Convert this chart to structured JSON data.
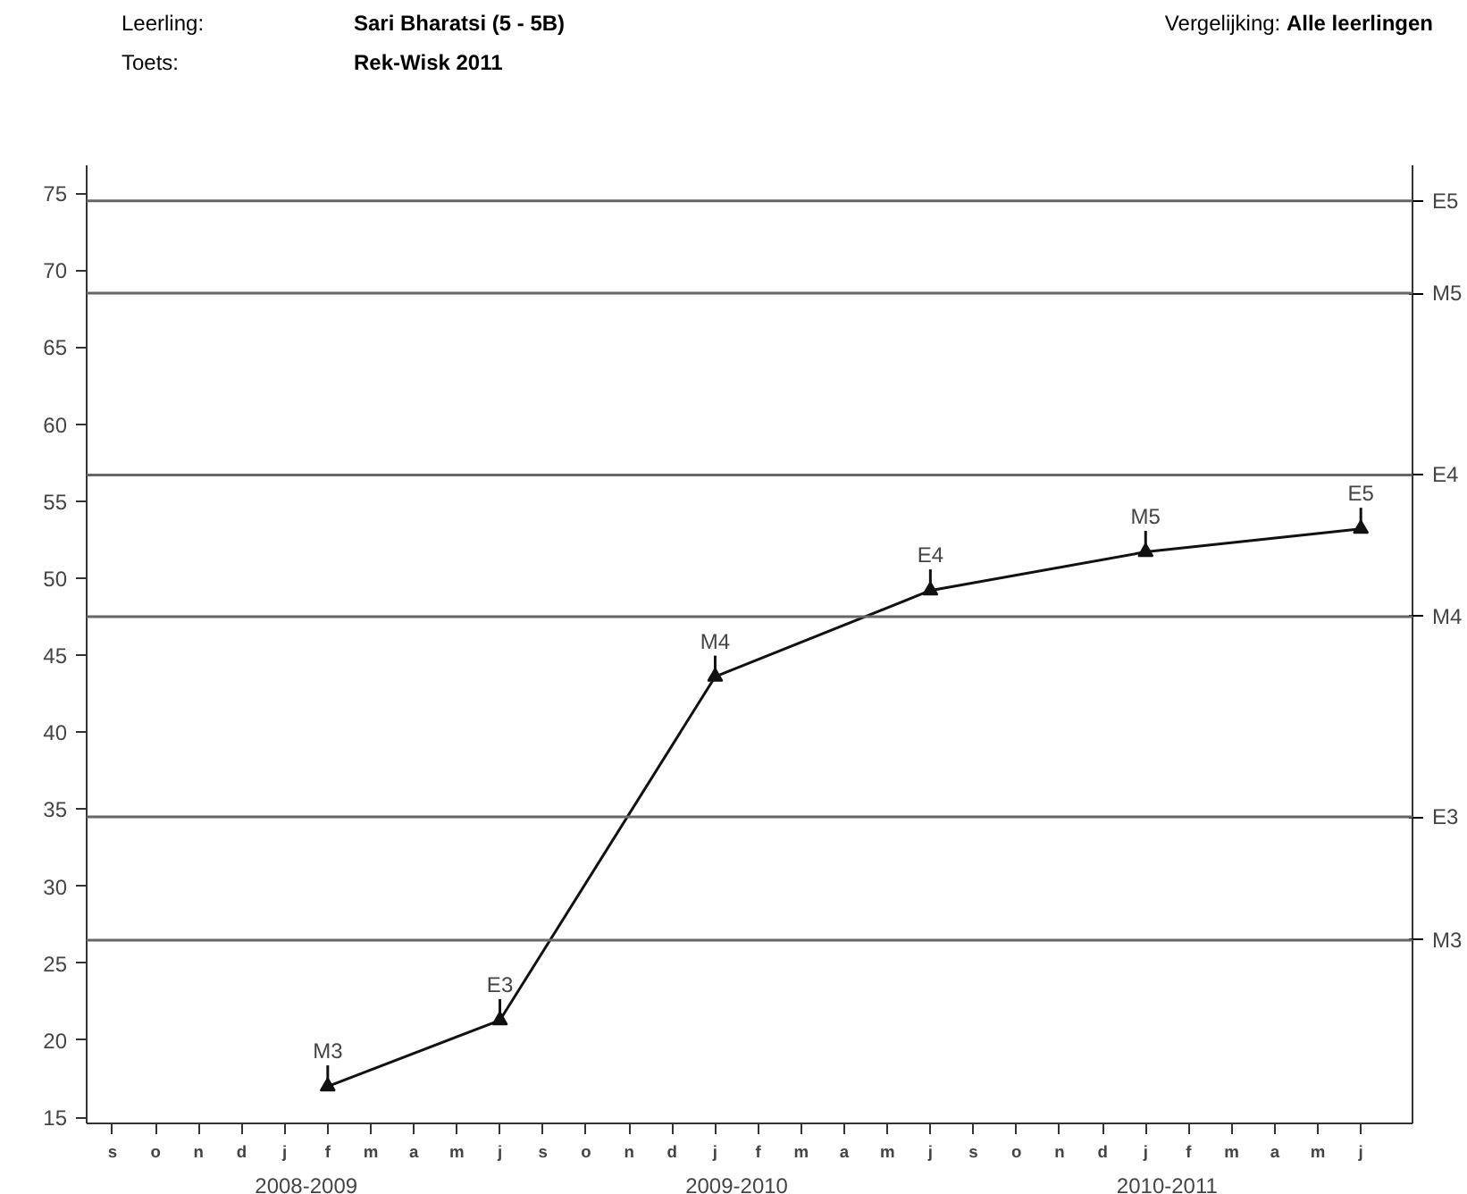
{
  "chart_data": {
    "type": "line",
    "annotations": [
      "Leerling:",
      "Sari Bharatsi  (5 - 5B)",
      "Toets:",
      "Rek-Wisk 2011",
      "Vergelijking: Alle leerlingen",
      "2008-2009",
      "2009-2010",
      "2010-2011"
    ],
    "categories": [
      "s",
      "o",
      "n",
      "d",
      "j",
      "f",
      "m",
      "a",
      "m",
      "j",
      "s",
      "o",
      "n",
      "d",
      "j",
      "f",
      "m",
      "a",
      "m",
      "j",
      "s",
      "o",
      "n",
      "d",
      "j",
      "f",
      "m",
      "a",
      "m",
      "j"
    ],
    "series": [
      {
        "color": "#111111",
        "values": [
          null,
          null,
          null,
          null,
          null,
          17.0,
          null,
          null,
          null,
          21.3,
          null,
          null,
          null,
          null,
          43.6,
          null,
          null,
          null,
          null,
          49.2,
          null,
          null,
          null,
          null,
          51.7,
          null,
          null,
          null,
          null,
          53.2
        ],
        "value_labels": [
          null,
          null,
          null,
          null,
          null,
          "M3",
          null,
          null,
          null,
          "E3",
          null,
          null,
          null,
          null,
          "M4",
          null,
          null,
          null,
          null,
          "E4",
          null,
          null,
          null,
          null,
          "M5",
          null,
          null,
          null,
          null,
          "E5"
        ]
      }
    ],
    "marker": "triangle",
    "line_style": "solid",
    "grid": false,
    "ylim": [
      14.6,
      76.8
    ],
    "yticks": [
      15,
      20,
      25,
      30,
      35,
      40,
      45,
      50,
      55,
      60,
      65,
      70,
      75
    ],
    "ref_lines": [
      {
        "axis": "y",
        "value": 74.5,
        "label": "E5",
        "color": "#666666"
      },
      {
        "axis": "y",
        "value": 68.5,
        "label": "M5",
        "color": "#666666"
      },
      {
        "axis": "y",
        "value": 56.7,
        "label": "E4",
        "color": "#666666"
      },
      {
        "axis": "y",
        "value": 47.5,
        "label": "M4",
        "color": "#666666"
      },
      {
        "axis": "y",
        "value": 34.5,
        "label": "E3",
        "color": "#666666"
      },
      {
        "axis": "y",
        "value": 26.5,
        "label": "M3",
        "color": "#666666"
      }
    ]
  }
}
